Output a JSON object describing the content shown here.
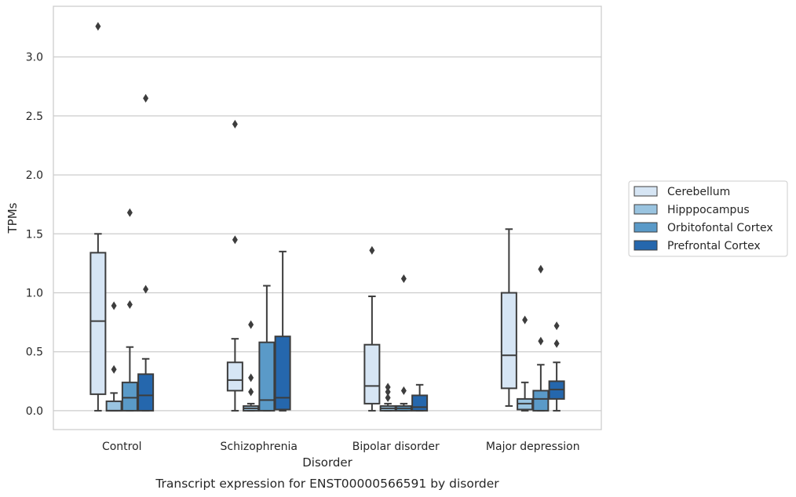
{
  "chart_data": {
    "type": "box",
    "xlabel": "Disorder",
    "ylabel": "TPMs",
    "caption": "Transcript expression for ENST00000566591 by disorder",
    "ylim": [
      -0.16,
      3.43
    ],
    "yticks": [
      "0.0",
      "0.5",
      "1.0",
      "1.5",
      "2.0",
      "2.5",
      "3.0"
    ],
    "grid": "horizontal",
    "legend_position": "right",
    "categories": [
      "Control",
      "Schizophrenia",
      "Bipolar disorder",
      "Major depression"
    ],
    "series": [
      {
        "name": "Cerebellum",
        "color": "#d6e5f4",
        "boxes": [
          {
            "whisker_low": 0.0,
            "q1": 0.14,
            "median": 0.76,
            "q3": 1.34,
            "whisker_high": 1.5,
            "outliers": [
              3.26
            ]
          },
          {
            "whisker_low": 0.0,
            "q1": 0.17,
            "median": 0.26,
            "q3": 0.41,
            "whisker_high": 0.61,
            "outliers": [
              1.45,
              2.43
            ]
          },
          {
            "whisker_low": 0.0,
            "q1": 0.06,
            "median": 0.21,
            "q3": 0.56,
            "whisker_high": 0.97,
            "outliers": [
              1.36
            ]
          },
          {
            "whisker_low": 0.04,
            "q1": 0.19,
            "median": 0.47,
            "q3": 1.0,
            "whisker_high": 1.54,
            "outliers": []
          }
        ]
      },
      {
        "name": "Hipppocampus",
        "color": "#9ac4e0",
        "boxes": [
          {
            "whisker_low": 0.0,
            "q1": 0.0,
            "median": 0.0,
            "q3": 0.08,
            "whisker_high": 0.15,
            "outliers": [
              0.35,
              0.89
            ]
          },
          {
            "whisker_low": 0.0,
            "q1": 0.0,
            "median": 0.02,
            "q3": 0.04,
            "whisker_high": 0.06,
            "outliers": [
              0.16,
              0.28,
              0.73
            ]
          },
          {
            "whisker_low": 0.0,
            "q1": 0.0,
            "median": 0.02,
            "q3": 0.04,
            "whisker_high": 0.06,
            "outliers": [
              0.11,
              0.16,
              0.2
            ]
          },
          {
            "whisker_low": 0.0,
            "q1": 0.01,
            "median": 0.06,
            "q3": 0.1,
            "whisker_high": 0.24,
            "outliers": [
              0.77
            ]
          }
        ]
      },
      {
        "name": "Orbitofontal Cortex",
        "color": "#5a9ac8",
        "boxes": [
          {
            "whisker_low": 0.0,
            "q1": 0.0,
            "median": 0.11,
            "q3": 0.24,
            "whisker_high": 0.54,
            "outliers": [
              0.9,
              1.68
            ]
          },
          {
            "whisker_low": 0.0,
            "q1": 0.0,
            "median": 0.09,
            "q3": 0.58,
            "whisker_high": 1.06,
            "outliers": []
          },
          {
            "whisker_low": 0.0,
            "q1": 0.0,
            "median": 0.02,
            "q3": 0.04,
            "whisker_high": 0.06,
            "outliers": [
              0.17,
              1.12
            ]
          },
          {
            "whisker_low": 0.0,
            "q1": 0.0,
            "median": 0.1,
            "q3": 0.17,
            "whisker_high": 0.39,
            "outliers": [
              0.59,
              1.2
            ]
          }
        ]
      },
      {
        "name": "Prefrontal Cortex",
        "color": "#2567ad",
        "boxes": [
          {
            "whisker_low": 0.0,
            "q1": 0.0,
            "median": 0.13,
            "q3": 0.31,
            "whisker_high": 0.44,
            "outliers": [
              1.03,
              2.65
            ]
          },
          {
            "whisker_low": 0.0,
            "q1": 0.01,
            "median": 0.11,
            "q3": 0.63,
            "whisker_high": 1.35,
            "outliers": []
          },
          {
            "whisker_low": 0.0,
            "q1": 0.0,
            "median": 0.03,
            "q3": 0.13,
            "whisker_high": 0.22,
            "outliers": []
          },
          {
            "whisker_low": 0.0,
            "q1": 0.1,
            "median": 0.18,
            "q3": 0.25,
            "whisker_high": 0.41,
            "outliers": [
              0.57,
              0.72
            ]
          }
        ]
      }
    ]
  }
}
